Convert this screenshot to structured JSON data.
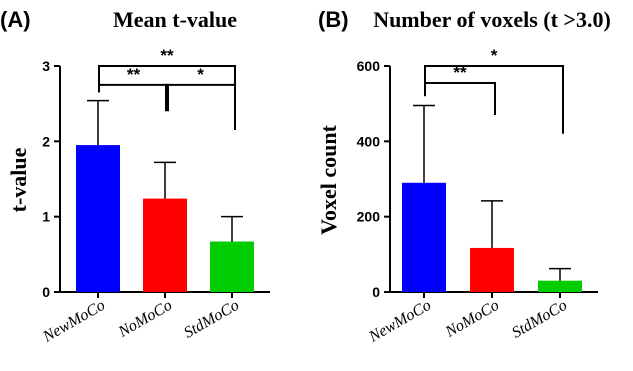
{
  "chart_data": [
    {
      "type": "bar",
      "panel_label": "(A)",
      "title": "Mean t-value",
      "xlabel": "",
      "ylabel": "t-value",
      "ylim": [
        0,
        3
      ],
      "yticks": [
        0,
        1,
        2,
        3
      ],
      "categories": [
        "NewMoCo",
        "NoMoCo",
        "StdMoCo"
      ],
      "values": [
        1.95,
        1.24,
        0.67
      ],
      "errors": [
        0.59,
        0.48,
        0.33
      ],
      "colors": [
        "#0000ff",
        "#ff0000",
        "#00cc00"
      ],
      "grid": false,
      "significance": [
        {
          "from": 0,
          "to": 2,
          "label": "**",
          "y_level": 3.0,
          "left_end": 2.65,
          "right_end": 2.15
        },
        {
          "from": 0,
          "to": 1,
          "label": "**",
          "y_level": 2.75,
          "left_end": 2.65,
          "right_end": 2.4
        },
        {
          "from": 1,
          "to": 2,
          "label": "*",
          "y_level": 2.75,
          "left_end": 2.4,
          "right_end": 2.15
        }
      ]
    },
    {
      "type": "bar",
      "panel_label": "(B)",
      "title": "Number of voxels (t >3.0)",
      "xlabel": "",
      "ylabel": "Voxel count",
      "ylim": [
        0,
        600
      ],
      "yticks": [
        0,
        200,
        400,
        600
      ],
      "categories": [
        "NewMoCo",
        "NoMoCo",
        "StdMoCo"
      ],
      "values": [
        290,
        117,
        30
      ],
      "errors": [
        205,
        125,
        32
      ],
      "colors": [
        "#0000ff",
        "#ff0000",
        "#00cc00"
      ],
      "grid": false,
      "significance": [
        {
          "from": 0,
          "to": 2,
          "label": "*",
          "y_level": 600,
          "left_end": 520,
          "right_end": 420
        },
        {
          "from": 0,
          "to": 1,
          "label": "**",
          "y_level": 555,
          "left_end": 520,
          "right_end": 470
        }
      ]
    }
  ]
}
